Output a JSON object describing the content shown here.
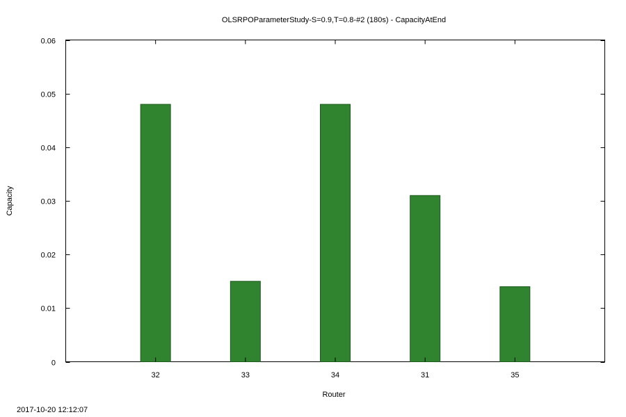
{
  "chart_data": {
    "type": "bar",
    "title": "OLSRPOParameterStudy-S=0.9,T=0.8-#2 (180s) - CapacityAtEnd",
    "xlabel": "Router",
    "ylabel": "Capacity",
    "categories": [
      "32",
      "33",
      "34",
      "31",
      "35"
    ],
    "values": [
      0.048,
      0.015,
      0.048,
      0.031,
      0.014
    ],
    "ylim": [
      0,
      0.06
    ],
    "yticks": [
      "0",
      "0.01",
      "0.02",
      "0.03",
      "0.04",
      "0.05",
      "0.06"
    ],
    "bar_color": "#31842f",
    "grid": false,
    "legend": "none"
  },
  "footer": {
    "timestamp": "2017-10-20 12:12:07"
  }
}
